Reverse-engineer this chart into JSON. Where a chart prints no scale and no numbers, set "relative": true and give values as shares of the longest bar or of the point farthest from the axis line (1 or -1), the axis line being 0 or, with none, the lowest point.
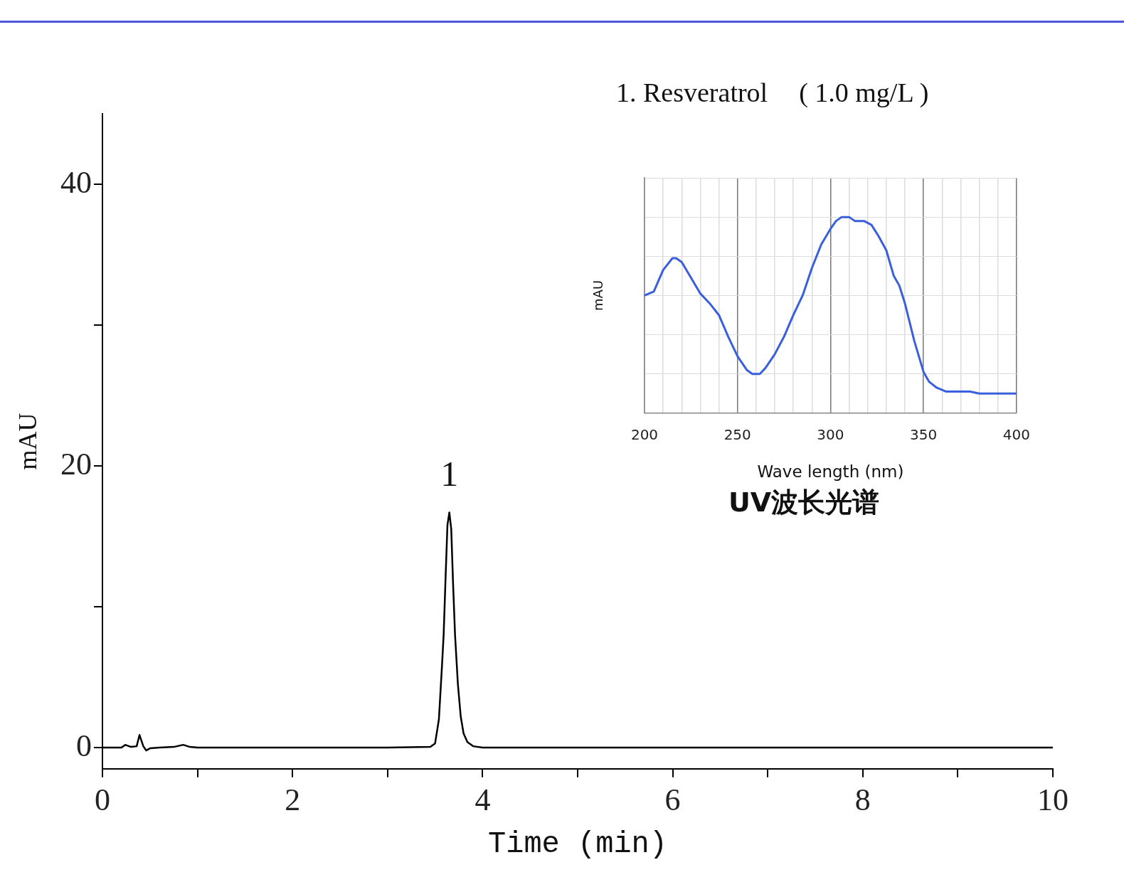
{
  "chart_data": [
    {
      "type": "line",
      "title": "1. Resveratrol",
      "subtitle": "( 1.0 mg/L )",
      "xlabel": "Time (min)",
      "ylabel": "mAU",
      "x": [
        0,
        0.2,
        0.24,
        0.3,
        0.36,
        0.39,
        0.43,
        0.46,
        0.5,
        0.6,
        0.75,
        0.85,
        0.92,
        1.0,
        2.0,
        3.0,
        3.45,
        3.5,
        3.54,
        3.57,
        3.59,
        3.61,
        3.63,
        3.65,
        3.67,
        3.69,
        3.71,
        3.74,
        3.77,
        3.8,
        3.84,
        3.9,
        4.0,
        10
      ],
      "series": [
        {
          "color": "#000000",
          "values": [
            0,
            0,
            0.2,
            0.05,
            0.1,
            0.9,
            0.1,
            -0.2,
            -0.05,
            0,
            0.05,
            0.2,
            0.05,
            0,
            0,
            0,
            0.05,
            0.3,
            2,
            5.5,
            8,
            12,
            15.8,
            16.7,
            15.5,
            11.5,
            8,
            4.5,
            2.2,
            1,
            0.4,
            0.1,
            0,
            0
          ]
        }
      ],
      "xlim": [
        0,
        10
      ],
      "xticks": [
        0,
        {
          "value": 1,
          "label": null
        },
        2,
        {
          "value": 3,
          "label": null
        },
        4,
        {
          "value": 5,
          "label": null
        },
        6,
        {
          "value": 7,
          "label": null
        },
        8,
        {
          "value": 9,
          "label": null
        },
        10
      ],
      "ylim": [
        -1.5,
        45
      ],
      "yticks": [
        0,
        {
          "value": 10,
          "label": null
        },
        20,
        {
          "value": 30,
          "label": null
        },
        40
      ],
      "annotations": [
        {
          "text": "1",
          "x": 3.65,
          "y": 16.7
        }
      ],
      "legend": false,
      "grid": false,
      "marker": "none",
      "line_style": "solid"
    },
    {
      "type": "line",
      "title": "UV波长光谱",
      "xlabel": "Wave length (nm)",
      "ylabel": "mAU",
      "relative": true,
      "x": [
        200,
        205,
        210,
        215,
        217,
        220,
        225,
        230,
        235,
        240,
        245,
        250,
        255,
        258,
        262,
        265,
        270,
        275,
        280,
        285,
        290,
        295,
        300,
        303,
        306,
        310,
        313,
        318,
        322,
        326,
        330,
        334,
        337,
        340,
        345,
        350,
        353,
        357,
        362,
        375,
        380,
        400
      ],
      "series": [
        {
          "color": "#3a5fdc",
          "values": [
            0.6,
            0.62,
            0.73,
            0.79,
            0.79,
            0.77,
            0.69,
            0.61,
            0.56,
            0.5,
            0.39,
            0.29,
            0.22,
            0.2,
            0.2,
            0.23,
            0.3,
            0.39,
            0.5,
            0.6,
            0.74,
            0.86,
            0.94,
            0.98,
            1,
            1,
            0.98,
            0.98,
            0.96,
            0.9,
            0.83,
            0.7,
            0.65,
            0.56,
            0.37,
            0.21,
            0.16,
            0.13,
            0.11,
            0.11,
            0.1,
            0.1
          ]
        }
      ],
      "xlim": [
        200,
        400
      ],
      "xticks": [
        200,
        {
          "value": 210,
          "label": null
        },
        {
          "value": 220,
          "label": null
        },
        {
          "value": 230,
          "label": null
        },
        {
          "value": 240,
          "label": null
        },
        250,
        {
          "value": 260,
          "label": null
        },
        {
          "value": 270,
          "label": null
        },
        {
          "value": 280,
          "label": null
        },
        {
          "value": 290,
          "label": null
        },
        300,
        {
          "value": 310,
          "label": null
        },
        {
          "value": 320,
          "label": null
        },
        {
          "value": 330,
          "label": null
        },
        {
          "value": 340,
          "label": null
        },
        350,
        {
          "value": 360,
          "label": null
        },
        {
          "value": 370,
          "label": null
        },
        {
          "value": 380,
          "label": null
        },
        {
          "value": 390,
          "label": null
        },
        400
      ],
      "grid": true,
      "legend": false,
      "marker": "none",
      "line_style": "solid"
    }
  ]
}
